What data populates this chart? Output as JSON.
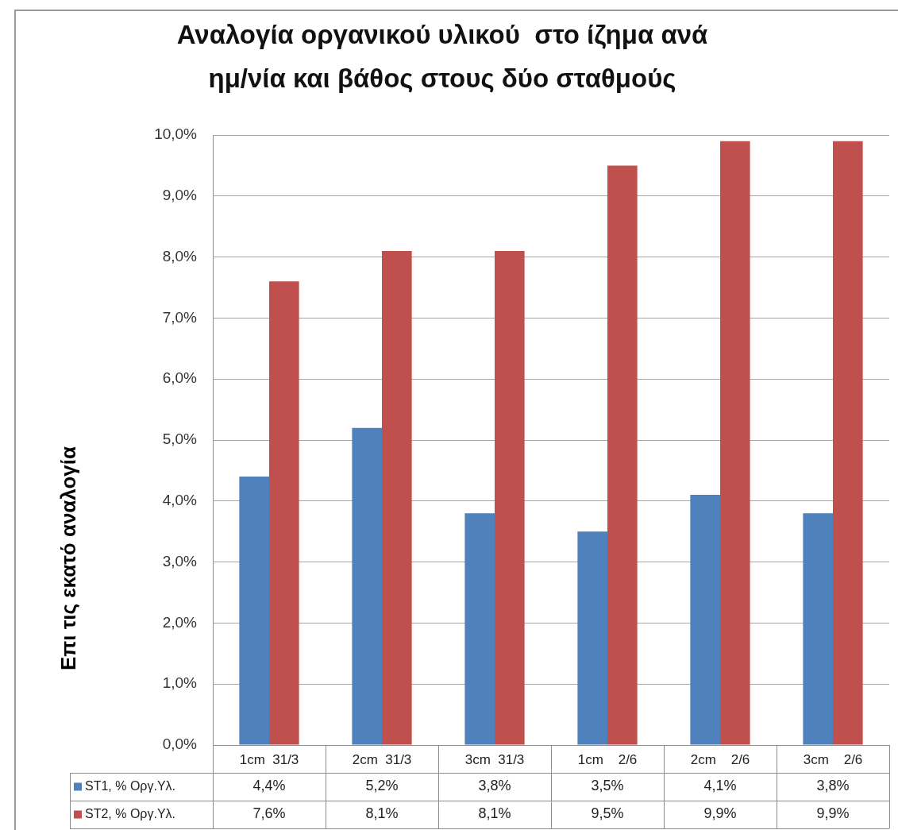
{
  "chart_data": {
    "type": "bar",
    "title": "Αναλογία οργανικού υλικού  στο ίζημα ανά ημ/νία και βάθος στους δύο σταθμούς",
    "ylabel": "Επι τις εκατό αναλογία",
    "categories": [
      "1cm  31/3",
      "2cm  31/3",
      "3cm  31/3",
      "1cm    2/6",
      "2cm    2/6",
      "3cm    2/6"
    ],
    "series": [
      {
        "name": "ST1, % Οργ.Υλ.",
        "color": "#4f81bd",
        "values": [
          4.4,
          5.2,
          3.8,
          3.5,
          4.1,
          3.8
        ],
        "value_labels": [
          "4,4%",
          "5,2%",
          "3,8%",
          "3,5%",
          "4,1%",
          "3,8%"
        ]
      },
      {
        "name": "ST2, % Οργ.Υλ.",
        "color": "#c0504d",
        "values": [
          7.6,
          8.1,
          8.1,
          9.5,
          9.9,
          9.9
        ],
        "value_labels": [
          "7,6%",
          "8,1%",
          "8,1%",
          "9,5%",
          "9,9%",
          "9,9%"
        ]
      }
    ],
    "ylim": [
      0,
      10
    ],
    "yticks": [
      {
        "value": 0,
        "label": "0,0%"
      },
      {
        "value": 1,
        "label": "1,0%"
      },
      {
        "value": 2,
        "label": "2,0%"
      },
      {
        "value": 3,
        "label": "3,0%"
      },
      {
        "value": 4,
        "label": "4,0%"
      },
      {
        "value": 5,
        "label": "5,0%"
      },
      {
        "value": 6,
        "label": "6,0%"
      },
      {
        "value": 7,
        "label": "7,0%"
      },
      {
        "value": 8,
        "label": "8,0%"
      },
      {
        "value": 9,
        "label": "9,0%"
      },
      {
        "value": 10,
        "label": "10,0%"
      }
    ],
    "grid": "y",
    "legend": "bottom"
  }
}
